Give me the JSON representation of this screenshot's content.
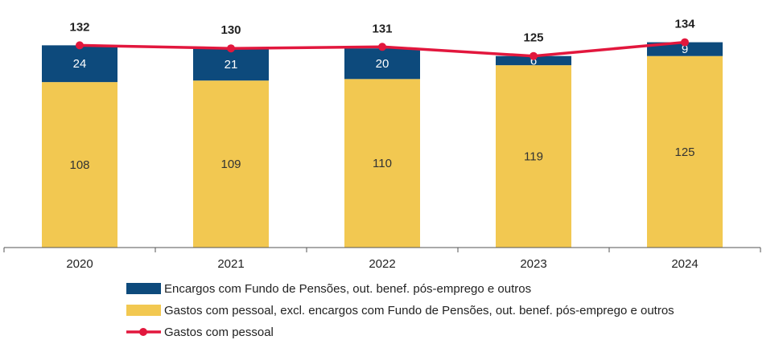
{
  "chart_data": {
    "type": "stacked-bar-line",
    "categories": [
      "2020",
      "2021",
      "2022",
      "2023",
      "2024"
    ],
    "series": [
      {
        "name": "Encargos com Fundo de Pensões, out. benef. pós-emprego e outros",
        "color": "#0d4a7c",
        "kind": "bar",
        "values": [
          24,
          21,
          20,
          6,
          9
        ]
      },
      {
        "name": "Gastos com pessoal, excl. encargos com Fundo de Pensões, out. benef. pós-emprego e outros",
        "color": "#f2c851",
        "kind": "bar",
        "values": [
          108,
          109,
          110,
          119,
          125
        ]
      },
      {
        "name": "Gastos com pessoal",
        "color": "#e2173d",
        "kind": "line",
        "values": [
          132,
          130,
          131,
          125,
          134
        ]
      }
    ],
    "ylim": [
      0,
      160
    ]
  }
}
